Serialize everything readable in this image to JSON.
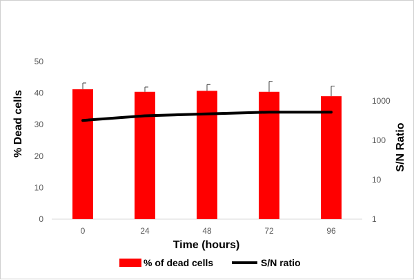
{
  "chart_data": {
    "type": "bar",
    "categories": [
      "0",
      "24",
      "48",
      "72",
      "96"
    ],
    "xlabel": "Time (hours)",
    "ylabel": "% Dead cells",
    "y2label": "S/N Ratio",
    "ylim": [
      0,
      50
    ],
    "yticks": [
      "0",
      "10",
      "20",
      "30",
      "40",
      "50"
    ],
    "y2_scale": "log",
    "y2lim": [
      1,
      10000
    ],
    "y2ticks": [
      "1",
      "10",
      "100",
      "1000"
    ],
    "grid": false,
    "legend_position": "bottom",
    "series": [
      {
        "name": "% of dead cells",
        "type": "bar",
        "axis": "left",
        "color": "#ff0000",
        "values": [
          41.2,
          40.4,
          40.7,
          40.4,
          39.0
        ],
        "errors": [
          2.0,
          1.5,
          2.0,
          3.3,
          3.2
        ]
      },
      {
        "name": "S/N ratio",
        "type": "line",
        "axis": "right",
        "color": "#000000",
        "values": [
          320,
          420,
          470,
          520,
          520
        ]
      }
    ]
  }
}
